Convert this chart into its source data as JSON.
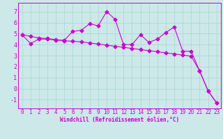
{
  "xlabel": "Windchill (Refroidissement éolien,°C)",
  "x_values": [
    0,
    1,
    2,
    3,
    4,
    5,
    6,
    7,
    8,
    9,
    10,
    11,
    12,
    13,
    14,
    15,
    16,
    17,
    18,
    19,
    20,
    21,
    22,
    23
  ],
  "line1": [
    4.9,
    4.1,
    4.5,
    4.5,
    4.4,
    4.4,
    5.2,
    5.3,
    5.9,
    5.7,
    7.0,
    6.3,
    4.0,
    4.0,
    4.9,
    4.2,
    4.5,
    5.1,
    5.6,
    3.4,
    3.4,
    1.6,
    -0.2,
    -1.3
  ],
  "line2": [
    4.9,
    4.75,
    4.6,
    4.55,
    4.45,
    4.35,
    4.3,
    4.25,
    4.15,
    4.05,
    3.95,
    3.85,
    3.75,
    3.65,
    3.55,
    3.45,
    3.35,
    3.25,
    3.15,
    3.05,
    2.95,
    1.6,
    -0.2,
    -1.3
  ],
  "line_color": "#cc00cc",
  "bg_color": "#cce8e8",
  "grid_color": "#aad4d4",
  "ylim": [
    -1.8,
    7.8
  ],
  "yticks": [
    -1,
    0,
    1,
    2,
    3,
    4,
    5,
    6,
    7
  ],
  "xlim": [
    -0.5,
    23.5
  ],
  "marker": "D",
  "marker_size": 2.5,
  "line_width": 0.8,
  "tick_fontsize": 5.5,
  "xlabel_fontsize": 5.5
}
